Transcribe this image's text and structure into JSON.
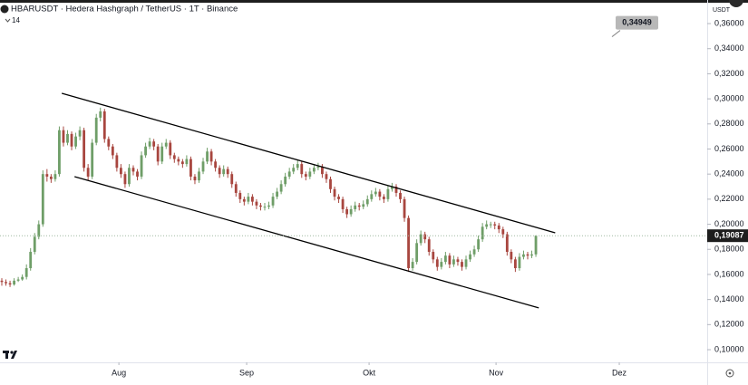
{
  "chart_data": {
    "type": "candlestick",
    "title": "HBARUSDT · Hedera Hashgraph / TetherUS · 1T · Binance",
    "indicator_label": "14",
    "currency": "USDT",
    "up_color": "#6f9e68",
    "down_color": "#a8463f",
    "xlim": [
      -0.44,
      171.7
    ],
    "xticks": [
      {
        "value": 28.5,
        "label": "Aug"
      },
      {
        "value": 59.6,
        "label": "Sep"
      },
      {
        "value": 89.4,
        "label": "Okt"
      },
      {
        "value": 120.3,
        "label": "Nov"
      },
      {
        "value": 150.3,
        "label": "Dez"
      }
    ],
    "ylim": [
      0.0899,
      0.3788
    ],
    "yticks": [
      {
        "value": 0.1,
        "label": "0,10000"
      },
      {
        "value": 0.12,
        "label": "0,12000"
      },
      {
        "value": 0.14,
        "label": "0,14000"
      },
      {
        "value": 0.16,
        "label": "0,16000"
      },
      {
        "value": 0.18,
        "label": "0,18000"
      },
      {
        "value": 0.2,
        "label": "0,20000"
      },
      {
        "value": 0.22,
        "label": "0,22000"
      },
      {
        "value": 0.24,
        "label": "0,24000"
      },
      {
        "value": 0.26,
        "label": "0,26000"
      },
      {
        "value": 0.28,
        "label": "0,28000"
      },
      {
        "value": 0.3,
        "label": "0,30000"
      },
      {
        "value": 0.32,
        "label": "0,32000"
      },
      {
        "value": 0.34,
        "label": "0,34000"
      },
      {
        "value": 0.36,
        "label": "0,36000"
      }
    ],
    "last_price": {
      "value": 0.19087,
      "label": "0,19087"
    },
    "annotation": {
      "value": 0.34949,
      "label": "0,34949"
    },
    "trendlines": [
      {
        "x": [
          14.6,
          134.7
        ],
        "y": [
          0.3044,
          0.1932
        ]
      },
      {
        "x": [
          17.7,
          130.7
        ],
        "y": [
          0.238,
          0.1333
        ]
      }
    ],
    "ohlc": [
      [
        0.155,
        0.157,
        0.151,
        0.154
      ],
      [
        0.154,
        0.156,
        0.151,
        0.153
      ],
      [
        0.153,
        0.155,
        0.15,
        0.152
      ],
      [
        0.152,
        0.157,
        0.151,
        0.155
      ],
      [
        0.155,
        0.158,
        0.154,
        0.156
      ],
      [
        0.156,
        0.16,
        0.155,
        0.158
      ],
      [
        0.158,
        0.168,
        0.156,
        0.165
      ],
      [
        0.165,
        0.181,
        0.163,
        0.178
      ],
      [
        0.178,
        0.193,
        0.176,
        0.19
      ],
      [
        0.19,
        0.203,
        0.188,
        0.2
      ],
      [
        0.2,
        0.243,
        0.198,
        0.24
      ],
      [
        0.24,
        0.244,
        0.234,
        0.238
      ],
      [
        0.238,
        0.24,
        0.233,
        0.236
      ],
      [
        0.236,
        0.243,
        0.234,
        0.24
      ],
      [
        0.24,
        0.278,
        0.238,
        0.275
      ],
      [
        0.275,
        0.278,
        0.262,
        0.265
      ],
      [
        0.265,
        0.275,
        0.263,
        0.272
      ],
      [
        0.272,
        0.274,
        0.259,
        0.262
      ],
      [
        0.262,
        0.273,
        0.26,
        0.27
      ],
      [
        0.27,
        0.278,
        0.267,
        0.275
      ],
      [
        0.275,
        0.277,
        0.242,
        0.245
      ],
      [
        0.245,
        0.248,
        0.235,
        0.238
      ],
      [
        0.238,
        0.268,
        0.236,
        0.265
      ],
      [
        0.265,
        0.288,
        0.263,
        0.285
      ],
      [
        0.285,
        0.293,
        0.282,
        0.29
      ],
      [
        0.29,
        0.292,
        0.265,
        0.268
      ],
      [
        0.268,
        0.27,
        0.259,
        0.262
      ],
      [
        0.262,
        0.264,
        0.252,
        0.255
      ],
      [
        0.255,
        0.257,
        0.242,
        0.245
      ],
      [
        0.245,
        0.248,
        0.237,
        0.24
      ],
      [
        0.24,
        0.242,
        0.229,
        0.232
      ],
      [
        0.232,
        0.248,
        0.23,
        0.245
      ],
      [
        0.245,
        0.247,
        0.239,
        0.242
      ],
      [
        0.242,
        0.244,
        0.235,
        0.238
      ],
      [
        0.238,
        0.258,
        0.236,
        0.255
      ],
      [
        0.255,
        0.265,
        0.253,
        0.262
      ],
      [
        0.262,
        0.269,
        0.26,
        0.266
      ],
      [
        0.266,
        0.268,
        0.259,
        0.262
      ],
      [
        0.262,
        0.264,
        0.247,
        0.25
      ],
      [
        0.25,
        0.265,
        0.248,
        0.262
      ],
      [
        0.262,
        0.268,
        0.26,
        0.265
      ],
      [
        0.265,
        0.267,
        0.252,
        0.255
      ],
      [
        0.255,
        0.257,
        0.249,
        0.252
      ],
      [
        0.252,
        0.254,
        0.247,
        0.25
      ],
      [
        0.25,
        0.252,
        0.245,
        0.248
      ],
      [
        0.248,
        0.255,
        0.246,
        0.252
      ],
      [
        0.252,
        0.254,
        0.235,
        0.238
      ],
      [
        0.238,
        0.24,
        0.232,
        0.235
      ],
      [
        0.235,
        0.245,
        0.233,
        0.242
      ],
      [
        0.242,
        0.253,
        0.24,
        0.25
      ],
      [
        0.25,
        0.261,
        0.248,
        0.258
      ],
      [
        0.258,
        0.26,
        0.247,
        0.25
      ],
      [
        0.25,
        0.252,
        0.242,
        0.245
      ],
      [
        0.245,
        0.247,
        0.237,
        0.24
      ],
      [
        0.24,
        0.247,
        0.238,
        0.244
      ],
      [
        0.244,
        0.246,
        0.237,
        0.24
      ],
      [
        0.24,
        0.242,
        0.229,
        0.232
      ],
      [
        0.232,
        0.234,
        0.222,
        0.225
      ],
      [
        0.225,
        0.227,
        0.217,
        0.22
      ],
      [
        0.22,
        0.222,
        0.215,
        0.218
      ],
      [
        0.218,
        0.225,
        0.216,
        0.222
      ],
      [
        0.222,
        0.224,
        0.215,
        0.218
      ],
      [
        0.218,
        0.22,
        0.212,
        0.215
      ],
      [
        0.215,
        0.217,
        0.211,
        0.214
      ],
      [
        0.214,
        0.217,
        0.211,
        0.214
      ],
      [
        0.214,
        0.218,
        0.212,
        0.215
      ],
      [
        0.215,
        0.225,
        0.213,
        0.222
      ],
      [
        0.222,
        0.229,
        0.22,
        0.226
      ],
      [
        0.226,
        0.235,
        0.224,
        0.232
      ],
      [
        0.232,
        0.241,
        0.23,
        0.238
      ],
      [
        0.238,
        0.245,
        0.236,
        0.242
      ],
      [
        0.242,
        0.248,
        0.24,
        0.245
      ],
      [
        0.245,
        0.251,
        0.243,
        0.248
      ],
      [
        0.248,
        0.25,
        0.237,
        0.24
      ],
      [
        0.24,
        0.242,
        0.235,
        0.238
      ],
      [
        0.238,
        0.245,
        0.236,
        0.242
      ],
      [
        0.242,
        0.248,
        0.24,
        0.245
      ],
      [
        0.245,
        0.249,
        0.243,
        0.246
      ],
      [
        0.246,
        0.248,
        0.237,
        0.24
      ],
      [
        0.24,
        0.242,
        0.233,
        0.236
      ],
      [
        0.236,
        0.238,
        0.225,
        0.228
      ],
      [
        0.228,
        0.23,
        0.219,
        0.222
      ],
      [
        0.222,
        0.224,
        0.217,
        0.22
      ],
      [
        0.22,
        0.222,
        0.209,
        0.212
      ],
      [
        0.212,
        0.214,
        0.205,
        0.208
      ],
      [
        0.208,
        0.215,
        0.206,
        0.212
      ],
      [
        0.212,
        0.218,
        0.21,
        0.215
      ],
      [
        0.215,
        0.217,
        0.211,
        0.214
      ],
      [
        0.214,
        0.219,
        0.212,
        0.216
      ],
      [
        0.216,
        0.223,
        0.214,
        0.22
      ],
      [
        0.22,
        0.227,
        0.218,
        0.224
      ],
      [
        0.224,
        0.229,
        0.222,
        0.226
      ],
      [
        0.226,
        0.228,
        0.219,
        0.222
      ],
      [
        0.222,
        0.224,
        0.217,
        0.22
      ],
      [
        0.22,
        0.231,
        0.218,
        0.228
      ],
      [
        0.228,
        0.233,
        0.226,
        0.23
      ],
      [
        0.23,
        0.232,
        0.222,
        0.225
      ],
      [
        0.225,
        0.227,
        0.217,
        0.22
      ],
      [
        0.22,
        0.222,
        0.202,
        0.205
      ],
      [
        0.205,
        0.207,
        0.162,
        0.165
      ],
      [
        0.165,
        0.173,
        0.163,
        0.17
      ],
      [
        0.17,
        0.188,
        0.168,
        0.185
      ],
      [
        0.185,
        0.195,
        0.183,
        0.192
      ],
      [
        0.192,
        0.194,
        0.185,
        0.188
      ],
      [
        0.188,
        0.19,
        0.175,
        0.178
      ],
      [
        0.178,
        0.18,
        0.169,
        0.172
      ],
      [
        0.172,
        0.174,
        0.163,
        0.166
      ],
      [
        0.166,
        0.173,
        0.164,
        0.17
      ],
      [
        0.17,
        0.178,
        0.168,
        0.175
      ],
      [
        0.175,
        0.177,
        0.165,
        0.168
      ],
      [
        0.168,
        0.175,
        0.166,
        0.172
      ],
      [
        0.172,
        0.174,
        0.167,
        0.17
      ],
      [
        0.17,
        0.172,
        0.163,
        0.166
      ],
      [
        0.166,
        0.175,
        0.164,
        0.172
      ],
      [
        0.172,
        0.179,
        0.17,
        0.176
      ],
      [
        0.176,
        0.183,
        0.174,
        0.18
      ],
      [
        0.18,
        0.191,
        0.178,
        0.188
      ],
      [
        0.188,
        0.201,
        0.186,
        0.198
      ],
      [
        0.198,
        0.203,
        0.196,
        0.2
      ],
      [
        0.2,
        0.202,
        0.197,
        0.2
      ],
      [
        0.2,
        0.202,
        0.196,
        0.199
      ],
      [
        0.199,
        0.201,
        0.193,
        0.196
      ],
      [
        0.196,
        0.198,
        0.189,
        0.192
      ],
      [
        0.192,
        0.194,
        0.175,
        0.178
      ],
      [
        0.178,
        0.18,
        0.169,
        0.172
      ],
      [
        0.172,
        0.174,
        0.162,
        0.165
      ],
      [
        0.165,
        0.177,
        0.163,
        0.174
      ],
      [
        0.174,
        0.179,
        0.172,
        0.176
      ],
      [
        0.176,
        0.178,
        0.172,
        0.175
      ],
      [
        0.175,
        0.179,
        0.173,
        0.176
      ],
      [
        0.176,
        0.1912,
        0.174,
        0.19087
      ]
    ]
  }
}
